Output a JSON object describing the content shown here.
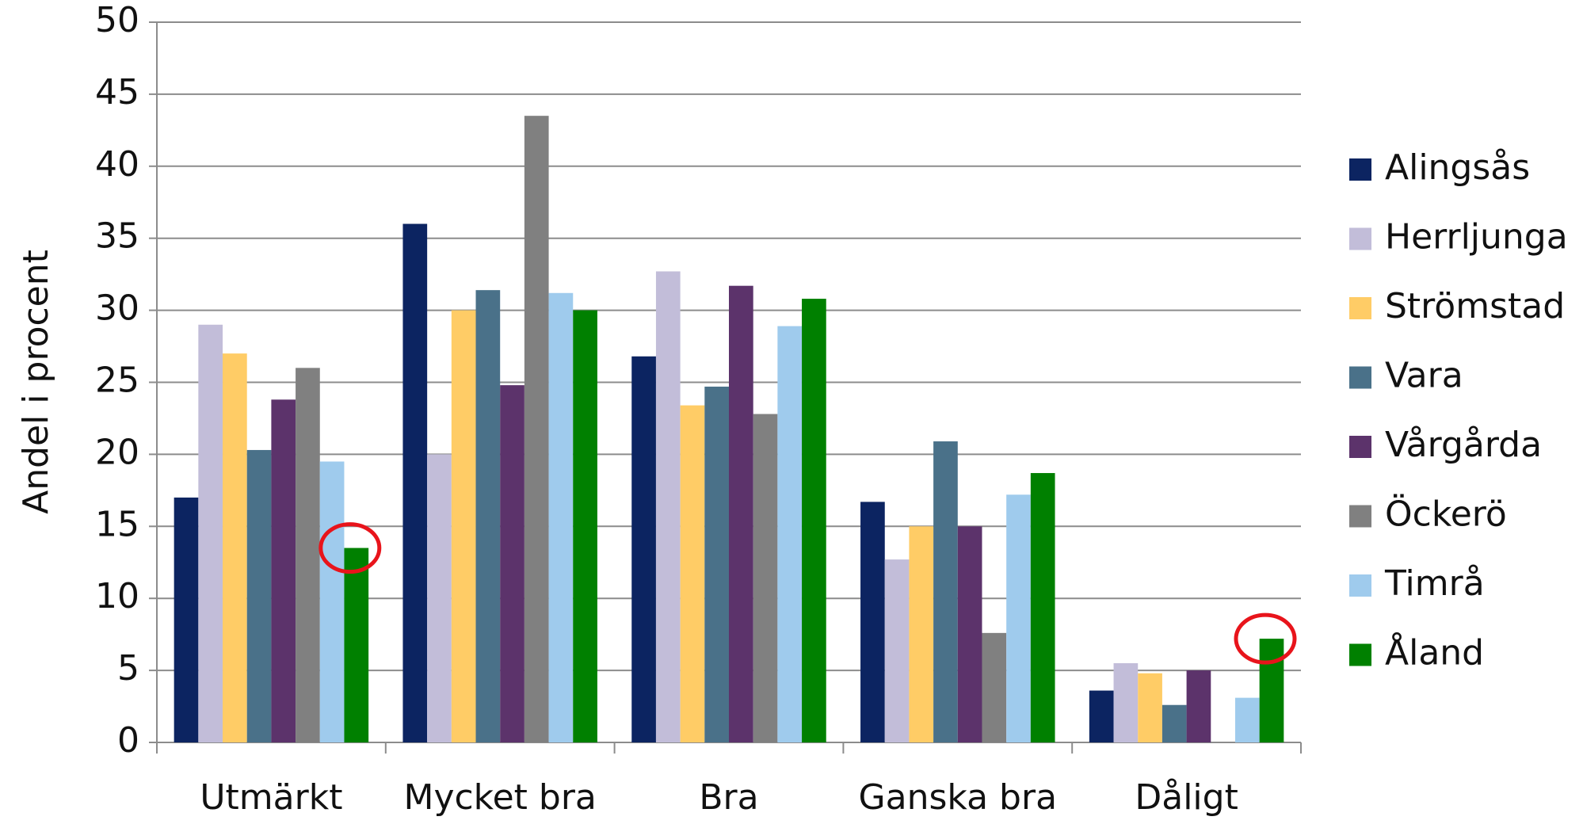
{
  "chart_data": {
    "type": "bar",
    "y_label": "Andel i procent",
    "categories": [
      "Utmärkt",
      "Mycket bra",
      "Bra",
      "Ganska bra",
      "Dåligt"
    ],
    "series": [
      {
        "name": "Alingsås",
        "color": "#0c2461",
        "values": [
          17,
          36,
          26.8,
          16.7,
          3.6
        ]
      },
      {
        "name": "Herrljunga",
        "color": "#c2bdd9",
        "values": [
          29,
          20,
          32.7,
          12.7,
          5.5
        ]
      },
      {
        "name": "Strömstad",
        "color": "#ffcc66",
        "values": [
          27,
          30,
          23.4,
          15,
          4.8
        ]
      },
      {
        "name": "Vara",
        "color": "#4a7189",
        "values": [
          20.3,
          31.4,
          24.7,
          20.9,
          2.6
        ]
      },
      {
        "name": "Vårgårda",
        "color": "#5c336b",
        "values": [
          23.8,
          24.8,
          31.7,
          15,
          5
        ]
      },
      {
        "name": "Öckerö",
        "color": "#808080",
        "values": [
          26,
          43.5,
          22.8,
          7.6,
          0
        ]
      },
      {
        "name": "Timrå",
        "color": "#9fcbed",
        "values": [
          19.5,
          31.2,
          28.9,
          17.2,
          3.1
        ]
      },
      {
        "name": "Åland",
        "color": "#008000",
        "values": [
          13.5,
          30,
          30.8,
          18.7,
          7.2
        ]
      }
    ],
    "ylim": [
      0,
      50
    ],
    "yticks": [
      0,
      5,
      10,
      15,
      20,
      25,
      30,
      35,
      40,
      45,
      50
    ],
    "grid": true,
    "legend": "right"
  }
}
